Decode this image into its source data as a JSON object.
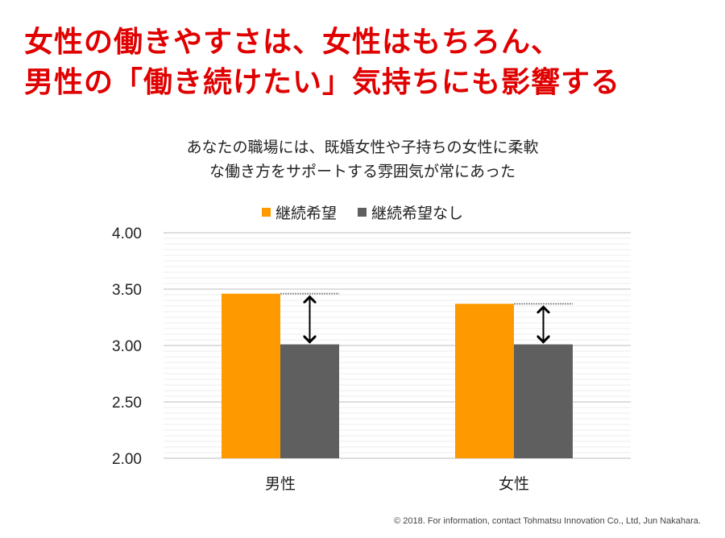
{
  "headline": [
    "女性の働きやすさは、女性はもちろん、",
    "男性の「働き続けたい」気持ちにも影響する"
  ],
  "chart_data": {
    "type": "bar",
    "title": [
      "あなたの職場には、既婚女性や子持ちの女性に柔軟",
      "な働き方をサポートする雰囲気が常にあった"
    ],
    "categories": [
      "男性",
      "女性"
    ],
    "series": [
      {
        "name": "継続希望",
        "color": "#ff9900",
        "values": [
          3.46,
          3.37
        ]
      },
      {
        "name": "継続希望なし",
        "color": "#5f5f5f",
        "values": [
          3.01,
          3.01
        ]
      }
    ],
    "ylim": [
      2.0,
      4.0
    ],
    "yticks": [
      "2.00",
      "2.50",
      "3.00",
      "3.50",
      "4.00"
    ],
    "legend": "top-center",
    "grid": true
  },
  "footer": "© 2018. For information, contact Tohmatsu Innovation Co., Ltd, Jun Nakahara."
}
